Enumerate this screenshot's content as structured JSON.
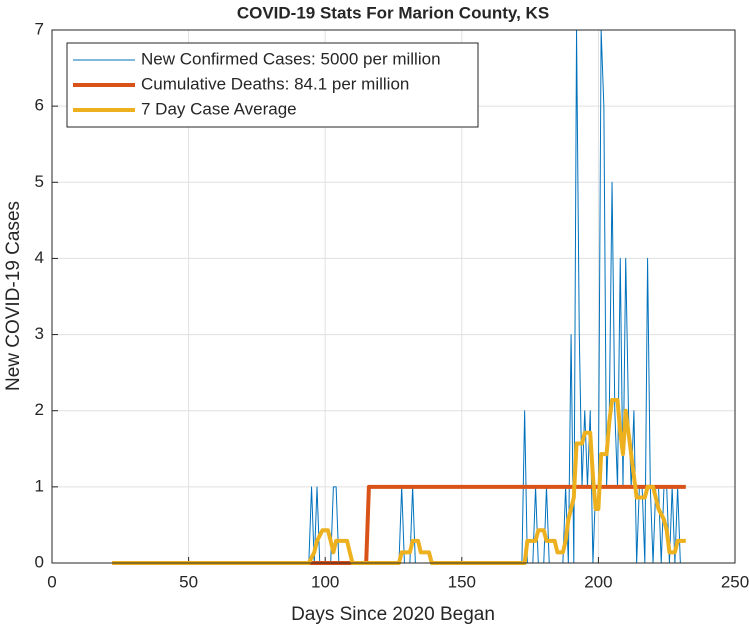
{
  "chart_data": {
    "type": "line",
    "title": "COVID-19 Stats For Marion County, KS",
    "xlabel": "Days Since 2020 Began",
    "ylabel": "New COVID-19 Cases",
    "xlim": [
      0,
      250
    ],
    "xticks": [
      0,
      50,
      100,
      150,
      200,
      250
    ],
    "ylim": [
      0,
      7
    ],
    "yticks": [
      0,
      1,
      2,
      3,
      4,
      5,
      6,
      7
    ],
    "grid": true,
    "legend": "upper left",
    "series": [
      {
        "name": "New Confirmed Cases: 5000 per million",
        "color": "#0072bd",
        "width": 1,
        "x": [
          22,
          94,
          95,
          96,
          97,
          98,
          102,
          103,
          104,
          105,
          127,
          128,
          129,
          131,
          132,
          133,
          172,
          173,
          174,
          176,
          177,
          178,
          180,
          181,
          182,
          187,
          188,
          189,
          190,
          191,
          192,
          193,
          194,
          195,
          196,
          197,
          198,
          199,
          200,
          201,
          202,
          203,
          204,
          205,
          206,
          207,
          208,
          209,
          210,
          211,
          212,
          213,
          214,
          215,
          216,
          217,
          218,
          219,
          220,
          221,
          222,
          223,
          224,
          225,
          226,
          227,
          228,
          229,
          230,
          232
        ],
        "values": [
          0,
          0,
          1,
          0,
          1,
          0,
          0,
          1,
          1,
          0,
          0,
          1,
          0,
          0,
          1,
          0,
          0,
          2,
          0,
          0,
          1,
          0,
          0,
          1,
          0,
          0,
          1,
          0,
          3,
          0,
          7,
          3,
          1,
          2,
          1,
          2,
          0,
          1,
          1,
          7,
          6,
          1,
          2,
          5,
          2,
          1,
          4,
          1,
          4,
          2,
          1,
          2,
          0,
          1,
          1,
          0,
          4,
          1,
          0,
          1,
          1,
          0,
          1,
          1,
          0,
          1,
          0,
          1,
          0,
          0
        ]
      },
      {
        "name": "Cumulative Deaths: 84.1 per million",
        "color": "#d95319",
        "width": 4,
        "x": [
          94,
          115,
          116,
          232
        ],
        "values": [
          0,
          0,
          1,
          1
        ]
      },
      {
        "name": "7 Day Case Average",
        "color": "#edb120",
        "width": 4,
        "x": [
          22,
          94,
          96,
          97,
          99,
          101,
          102,
          103,
          104,
          108,
          109,
          110,
          127,
          128,
          131,
          132,
          134,
          135,
          138,
          139,
          173,
          174,
          177,
          178,
          180,
          181,
          184,
          185,
          187,
          188,
          189,
          191,
          192,
          194,
          195,
          197,
          198,
          199,
          200,
          201,
          203,
          204,
          205,
          207,
          208,
          209,
          210,
          212,
          213,
          214,
          217,
          218,
          220,
          221,
          222,
          224,
          225,
          226,
          228,
          229,
          232
        ],
        "values": [
          0,
          0,
          0.14,
          0.29,
          0.43,
          0.43,
          0.29,
          0.14,
          0.29,
          0.29,
          0.14,
          0,
          0,
          0.14,
          0.14,
          0.29,
          0.29,
          0.14,
          0.14,
          0,
          0,
          0.29,
          0.29,
          0.43,
          0.43,
          0.29,
          0.29,
          0.14,
          0.14,
          0.29,
          0.57,
          0.86,
          1.57,
          1.57,
          1.71,
          1.71,
          1.14,
          0.71,
          0.71,
          1.43,
          1.43,
          1.86,
          2.14,
          2.14,
          1.71,
          1.43,
          2.0,
          1.43,
          1.14,
          0.86,
          0.86,
          1.0,
          1.0,
          0.86,
          0.71,
          0.57,
          0.43,
          0.14,
          0.14,
          0.29,
          0.29
        ]
      }
    ]
  }
}
